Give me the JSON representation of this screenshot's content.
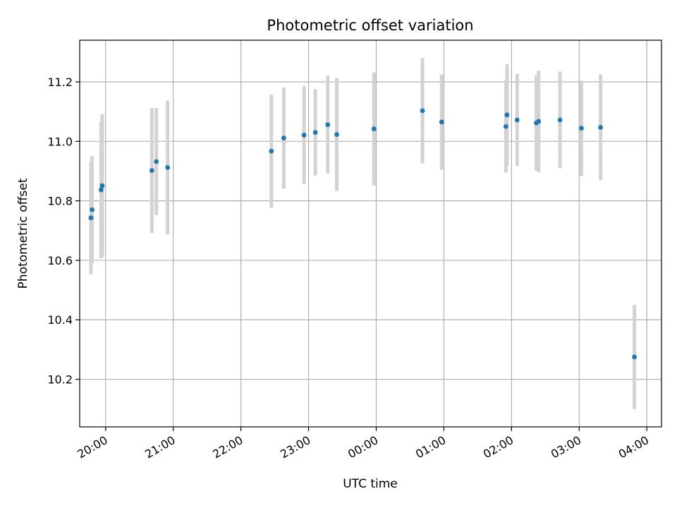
{
  "chart_data": {
    "type": "scatter",
    "title": "Photometric offset variation",
    "xlabel": "UTC time",
    "ylabel": "Photometric offset",
    "xlim": [
      "19:37",
      "04:13"
    ],
    "ylim": [
      10.04,
      11.34
    ],
    "grid": true,
    "xticks": [
      "20:00",
      "21:00",
      "22:00",
      "23:00",
      "00:00",
      "01:00",
      "02:00",
      "03:00",
      "04:00"
    ],
    "yticks": [
      10.2,
      10.4,
      10.6,
      10.8,
      11.0,
      11.2
    ],
    "colors": {
      "point": "#1f77b4",
      "errorbar": "#d3d3d3"
    },
    "points": [
      {
        "time": "19:47",
        "y": 10.743,
        "err": 0.19
      },
      {
        "time": "19:48",
        "y": 10.77,
        "err": 0.18
      },
      {
        "time": "19:56",
        "y": 10.837,
        "err": 0.23
      },
      {
        "time": "19:57",
        "y": 10.851,
        "err": 0.24
      },
      {
        "time": "20:41",
        "y": 10.902,
        "err": 0.21
      },
      {
        "time": "20:45",
        "y": 10.932,
        "err": 0.18
      },
      {
        "time": "20:55",
        "y": 10.912,
        "err": 0.225
      },
      {
        "time": "22:27",
        "y": 10.967,
        "err": 0.19
      },
      {
        "time": "22:38",
        "y": 11.011,
        "err": 0.17
      },
      {
        "time": "22:56",
        "y": 11.021,
        "err": 0.165
      },
      {
        "time": "23:06",
        "y": 11.03,
        "err": 0.145
      },
      {
        "time": "23:17",
        "y": 11.056,
        "err": 0.165
      },
      {
        "time": "23:25",
        "y": 11.023,
        "err": 0.19
      },
      {
        "time": "23:58",
        "y": 11.042,
        "err": 0.19
      },
      {
        "time": "00:41",
        "y": 11.103,
        "err": 0.177
      },
      {
        "time": "00:58",
        "y": 11.065,
        "err": 0.16
      },
      {
        "time": "01:55",
        "y": 11.05,
        "err": 0.155
      },
      {
        "time": "01:56",
        "y": 11.089,
        "err": 0.17
      },
      {
        "time": "02:05",
        "y": 11.072,
        "err": 0.155
      },
      {
        "time": "02:22",
        "y": 11.062,
        "err": 0.16
      },
      {
        "time": "02:24",
        "y": 11.067,
        "err": 0.17
      },
      {
        "time": "02:43",
        "y": 11.072,
        "err": 0.163
      },
      {
        "time": "03:02",
        "y": 11.044,
        "err": 0.16
      },
      {
        "time": "03:19",
        "y": 11.047,
        "err": 0.178
      },
      {
        "time": "03:49",
        "y": 10.275,
        "err": 0.175
      }
    ]
  }
}
